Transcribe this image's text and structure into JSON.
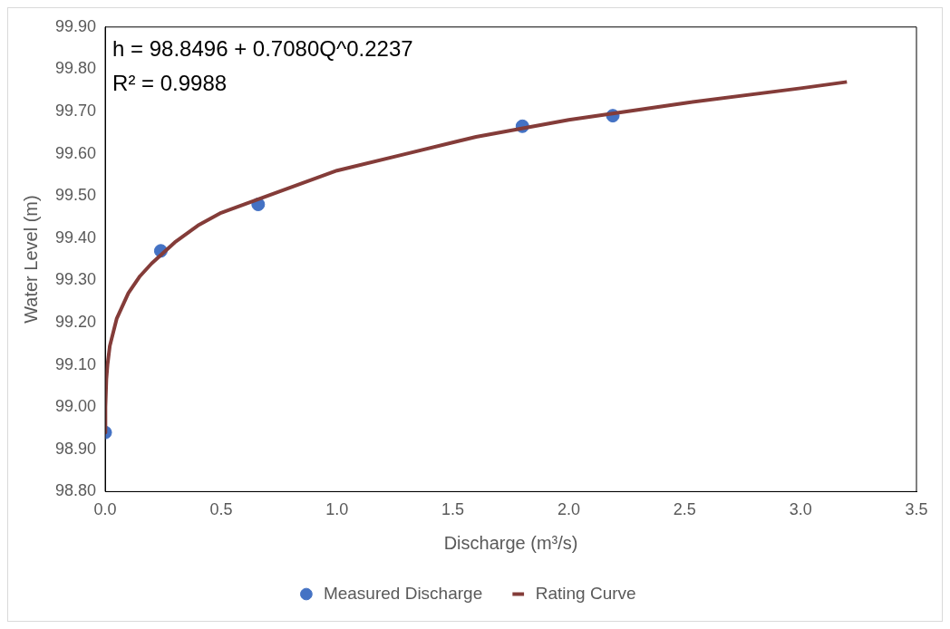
{
  "chart_data": {
    "type": "scatter",
    "xlabel": "Discharge (m³/s)",
    "ylabel": "Water Level (m)",
    "annotations": [
      "h = 98.8496 + 0.7080Q^0.2237",
      "R² = 0.9988"
    ],
    "xlim": [
      0,
      3.5
    ],
    "xticks": [
      {
        "value": 0,
        "label": "0.0"
      },
      {
        "value": 0.5,
        "label": "0.5"
      },
      {
        "value": 1,
        "label": "1.0"
      },
      {
        "value": 1.5,
        "label": "1.5"
      },
      {
        "value": 2,
        "label": "2.0"
      },
      {
        "value": 2.5,
        "label": "2.5"
      },
      {
        "value": 3,
        "label": "3.0"
      },
      {
        "value": 3.5,
        "label": "3.5"
      }
    ],
    "ylim": [
      98.8,
      99.9
    ],
    "yticks": [
      {
        "value": 98.8,
        "label": "98.80"
      },
      {
        "value": 98.9,
        "label": "98.90"
      },
      {
        "value": 99,
        "label": "99.00"
      },
      {
        "value": 99.1,
        "label": "99.10"
      },
      {
        "value": 99.2,
        "label": "99.20"
      },
      {
        "value": 99.3,
        "label": "99.30"
      },
      {
        "value": 99.4,
        "label": "99.40"
      },
      {
        "value": 99.5,
        "label": "99.50"
      },
      {
        "value": 99.6,
        "label": "99.60"
      },
      {
        "value": 99.7,
        "label": "99.70"
      },
      {
        "value": 99.8,
        "label": "99.80"
      },
      {
        "value": 99.9,
        "label": "99.90"
      }
    ],
    "grid": false,
    "legend": "bottom",
    "line_style": "solid",
    "series": [
      {
        "name": "Measured Discharge",
        "type": "scatter",
        "marker": "circle",
        "color": "#4472c4",
        "x": [
          0,
          0.24,
          0.66,
          1.8,
          2.19
        ],
        "values": [
          98.94,
          99.37,
          99.48,
          99.665,
          99.69
        ]
      },
      {
        "name": "Rating Curve",
        "type": "line",
        "color": "#843c39",
        "x": [
          0,
          0.001,
          0.005,
          0.01,
          0.02,
          0.05,
          0.1,
          0.15,
          0.2,
          0.3,
          0.4,
          0.5,
          0.7,
          1,
          1.3,
          1.6,
          2,
          2.5,
          3,
          3.2
        ],
        "values": [
          98.94,
          99.0,
          99.066,
          99.1,
          99.145,
          99.21,
          99.27,
          99.31,
          99.34,
          99.39,
          99.43,
          99.46,
          99.5,
          99.56,
          99.6,
          99.64,
          99.68,
          99.72,
          99.755,
          99.77
        ]
      }
    ]
  }
}
